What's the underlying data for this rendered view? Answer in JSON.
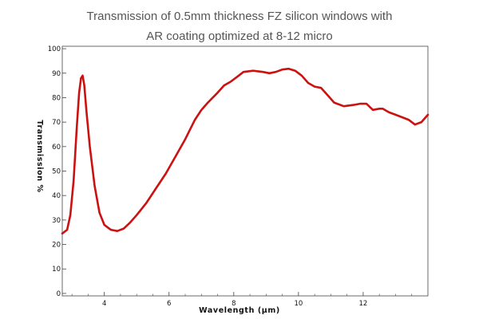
{
  "chart_data": {
    "type": "line",
    "title_lines": [
      "Transmission of 0.5mm thickness FZ silicon windows with",
      "AR coating optimized at 8-12 micro"
    ],
    "xlabel": "Wavelength (µm)",
    "ylabel": "Transmission %",
    "xlim": [
      2.7,
      14.0
    ],
    "ylim": [
      -1,
      101
    ],
    "xticks": [
      4,
      6,
      8,
      10,
      12
    ],
    "yticks": [
      0,
      10,
      20,
      30,
      40,
      50,
      60,
      70,
      80,
      90,
      100
    ],
    "grid": false,
    "legend": "none",
    "line_color": "#cc1111",
    "series": [
      {
        "x": [
          2.7,
          2.85,
          2.95,
          3.05,
          3.15,
          3.22,
          3.28,
          3.33,
          3.38,
          3.45,
          3.55,
          3.7,
          3.85,
          4.0,
          4.2,
          4.4,
          4.6,
          4.8,
          5.0,
          5.3,
          5.6,
          5.9,
          6.2,
          6.5,
          6.8,
          7.0,
          7.2,
          7.5,
          7.7,
          7.9,
          8.1,
          8.3,
          8.6,
          8.9,
          9.1,
          9.3,
          9.5,
          9.7,
          9.9,
          10.1,
          10.3,
          10.5,
          10.7,
          10.9,
          11.1,
          11.4,
          11.7,
          11.9,
          12.1,
          12.3,
          12.5,
          12.6,
          12.8,
          13.0,
          13.2,
          13.4,
          13.6,
          13.8,
          14.0
        ],
        "y": [
          24.5,
          26,
          32,
          46,
          68,
          82,
          88,
          89,
          85,
          74,
          60,
          44,
          33,
          28,
          26,
          25.5,
          26.5,
          29,
          32,
          37,
          43,
          49,
          56,
          63,
          71,
          75,
          78,
          82,
          85,
          86.5,
          88.5,
          90.5,
          91,
          90.5,
          90,
          90.5,
          91.5,
          91.8,
          91,
          89,
          86,
          84.5,
          84,
          81,
          78,
          76.5,
          77,
          77.5,
          77.5,
          75,
          75.5,
          75.5,
          74,
          73,
          72,
          71,
          69,
          70,
          73
        ]
      }
    ]
  }
}
